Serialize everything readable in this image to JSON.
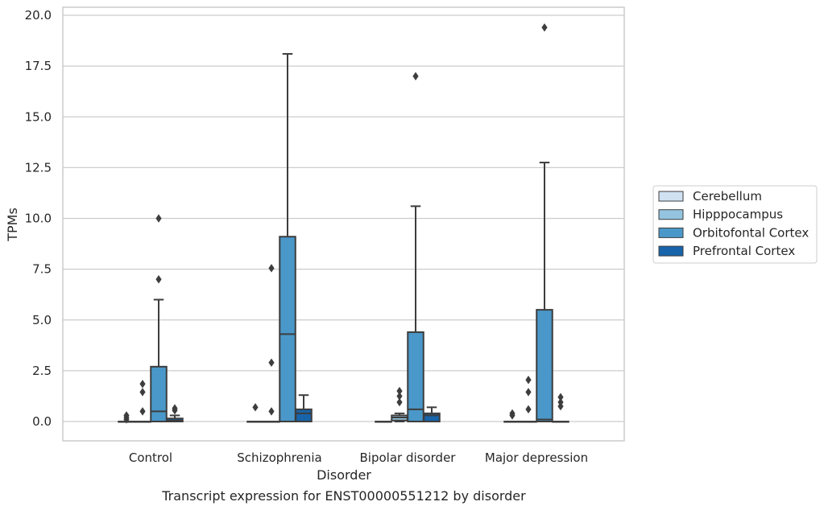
{
  "chart_data": {
    "type": "box",
    "title": "",
    "caption": "Transcript expression for ENST00000551212 by disorder",
    "xlabel": "Disorder",
    "ylabel": "TPMs",
    "ylim": [
      -0.9,
      20.4
    ],
    "yticks": [
      "0.0",
      "2.5",
      "5.0",
      "7.5",
      "10.0",
      "12.5",
      "15.0",
      "17.5",
      "20.0"
    ],
    "categories": [
      "Control",
      "Schizophrenia",
      "Bipolar disorder",
      "Major depression"
    ],
    "grid": "horizontal",
    "legend_position": "right",
    "series": [
      {
        "name": "Cerebellum",
        "color": "#d0e1f2",
        "boxes": [
          {
            "whislo": 0,
            "q1": 0,
            "med": 0,
            "q3": 0,
            "whishi": 0,
            "fliers": [
              0.1,
              0.2,
              0.3
            ]
          },
          {
            "whislo": 0,
            "q1": 0,
            "med": 0,
            "q3": 0,
            "whishi": 0,
            "fliers": [
              0.7
            ]
          },
          {
            "whislo": 0,
            "q1": 0,
            "med": 0,
            "q3": 0,
            "whishi": 0,
            "fliers": []
          },
          {
            "whislo": 0,
            "q1": 0,
            "med": 0,
            "q3": 0,
            "whishi": 0,
            "fliers": [
              0.3,
              0.4
            ]
          }
        ]
      },
      {
        "name": "Hipppocampus",
        "color": "#94c4df",
        "boxes": [
          {
            "whislo": 0,
            "q1": 0,
            "med": 0,
            "q3": 0,
            "whishi": 0,
            "fliers": [
              0.5,
              1.45,
              1.85
            ]
          },
          {
            "whislo": 0,
            "q1": 0,
            "med": 0,
            "q3": 0,
            "whishi": 0,
            "fliers": [
              0.5,
              2.9,
              7.55
            ]
          },
          {
            "whislo": 0,
            "q1": 0.05,
            "med": 0.2,
            "q3": 0.3,
            "whishi": 0.4,
            "fliers": [
              0.95,
              1.25,
              1.5
            ]
          },
          {
            "whislo": 0,
            "q1": 0,
            "med": 0,
            "q3": 0,
            "whishi": 0,
            "fliers": [
              0.6,
              1.45,
              2.05
            ]
          }
        ]
      },
      {
        "name": "Orbitofontal Cortex",
        "color": "#4a98c9",
        "boxes": [
          {
            "whislo": 0,
            "q1": 0,
            "med": 0.5,
            "q3": 2.7,
            "whishi": 6.0,
            "fliers": [
              7.0,
              10.0
            ]
          },
          {
            "whislo": 0,
            "q1": 0,
            "med": 4.3,
            "q3": 9.1,
            "whishi": 18.1,
            "fliers": []
          },
          {
            "whislo": 0,
            "q1": 0,
            "med": 0.6,
            "q3": 4.4,
            "whishi": 10.6,
            "fliers": [
              17.0
            ]
          },
          {
            "whislo": 0,
            "q1": 0,
            "med": 0.1,
            "q3": 5.5,
            "whishi": 12.75,
            "fliers": [
              19.4
            ]
          }
        ]
      },
      {
        "name": "Prefrontal Cortex",
        "color": "#1764ab",
        "boxes": [
          {
            "whislo": 0,
            "q1": 0,
            "med": 0.05,
            "q3": 0.15,
            "whishi": 0.3,
            "fliers": [
              0.55,
              0.65
            ]
          },
          {
            "whislo": 0,
            "q1": 0,
            "med": 0.4,
            "q3": 0.6,
            "whishi": 1.3,
            "fliers": []
          },
          {
            "whislo": 0,
            "q1": 0,
            "med": 0.3,
            "q3": 0.4,
            "whishi": 0.7,
            "fliers": []
          },
          {
            "whislo": 0,
            "q1": 0,
            "med": 0,
            "q3": 0,
            "whishi": 0,
            "fliers": [
              0.75,
              0.95,
              1.2
            ]
          }
        ]
      }
    ]
  }
}
